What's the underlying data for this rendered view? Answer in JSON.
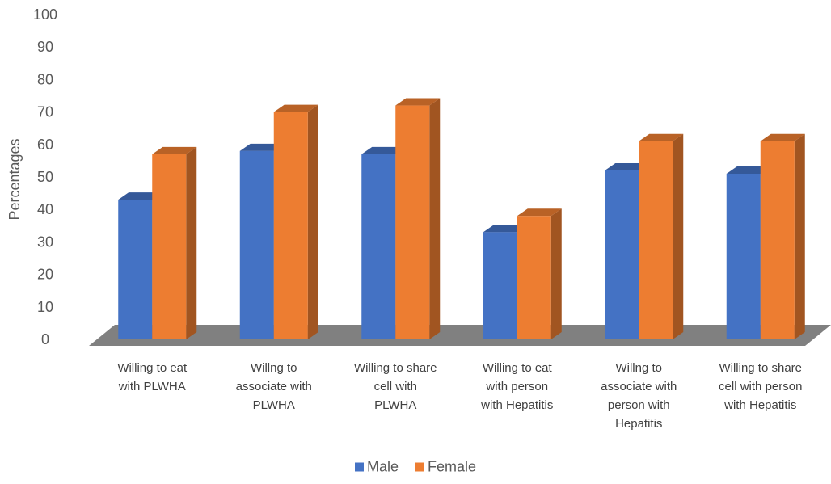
{
  "chart_data": {
    "type": "bar",
    "style": "3d-clustered-column",
    "ylabel": "Percentages",
    "ylim": [
      0,
      100
    ],
    "ytick_step": 10,
    "grid": false,
    "legend_position": "bottom",
    "categories": [
      [
        "Willing to eat",
        "with PLWHA"
      ],
      [
        "Willng to",
        "associate with",
        "PLWHA"
      ],
      [
        "Willing to share",
        "cell with",
        "PLWHA"
      ],
      [
        "Willing to eat",
        "with person",
        "with  Hepatitis"
      ],
      [
        "Willng to",
        "associate with",
        "person with",
        "Hepatitis"
      ],
      [
        "Willing to share",
        "cell with person",
        "with  Hepatitis"
      ]
    ],
    "series": [
      {
        "name": "Male",
        "color": "#4472C4",
        "values": [
          43,
          58,
          57,
          33,
          52,
          51
        ]
      },
      {
        "name": "Female",
        "color": "#ED7D31",
        "values": [
          57,
          70,
          72,
          38,
          61,
          61
        ]
      }
    ]
  }
}
